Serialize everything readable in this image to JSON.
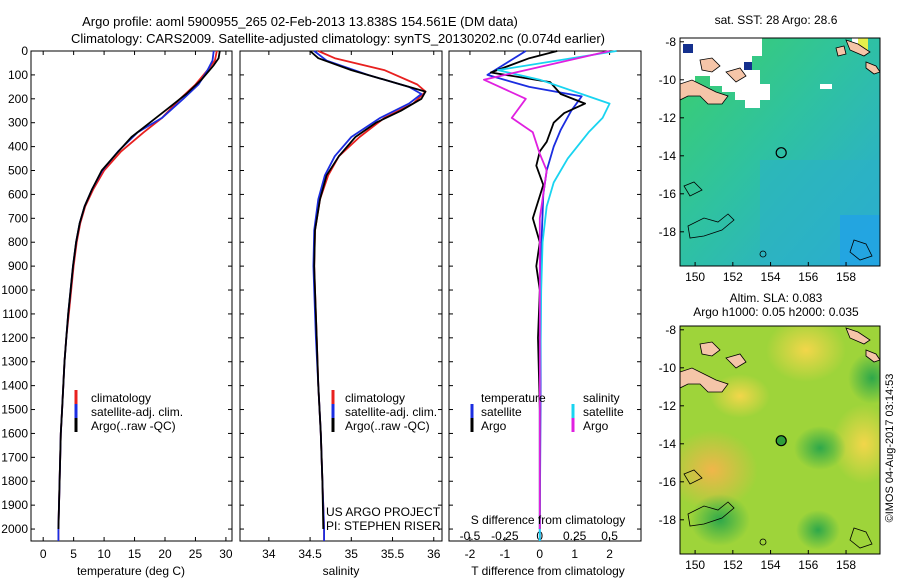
{
  "header": {
    "line1": "Argo profile: aoml 5900955_265 02-Feb-2013 13.838S 154.561E (DM data)",
    "line2": "Climatology: CARS2009. Satellite-adjusted climatology: synTS_20130202.nc (0.074d earlier)"
  },
  "colors": {
    "climatology": "#e8201f",
    "satellite": "#1b2de0",
    "argo": "#000000",
    "salinity_satellite": "#19d4f0",
    "salinity_argo": "#e020e0"
  },
  "side_labels": {
    "project": "US ARGO PROJECT",
    "pi": "PI: STEPHEN RISER",
    "imos": "©IMOS 04-Aug-2017 03:14:53"
  },
  "chart_data": [
    {
      "id": "temperature",
      "type": "line",
      "xlabel": "temperature (deg C)",
      "ylabel": "",
      "xlim": [
        -2,
        31
      ],
      "ylim": [
        2050,
        0
      ],
      "xticks": [
        0,
        5,
        10,
        15,
        20,
        25,
        30
      ],
      "yticks": [
        0,
        100,
        200,
        300,
        400,
        500,
        600,
        700,
        800,
        900,
        1000,
        1100,
        1200,
        1300,
        1400,
        1500,
        1600,
        1700,
        1800,
        1900,
        2000
      ],
      "legend": [
        "climatology",
        "satellite-adj. clim.",
        "Argo(..raw -QC)"
      ],
      "series": [
        {
          "name": "climatology",
          "color": "#e8201f",
          "points": [
            [
              28.5,
              0
            ],
            [
              28.2,
              40
            ],
            [
              27.0,
              80
            ],
            [
              25.0,
              140
            ],
            [
              22.5,
              200
            ],
            [
              19.5,
              280
            ],
            [
              16.5,
              340
            ],
            [
              12.8,
              420
            ],
            [
              10.0,
              500
            ],
            [
              8.2,
              580
            ],
            [
              6.9,
              650
            ],
            [
              6.1,
              720
            ],
            [
              5.5,
              800
            ],
            [
              5.0,
              900
            ],
            [
              4.6,
              1000
            ],
            [
              4.2,
              1100
            ],
            [
              3.8,
              1200
            ],
            [
              3.5,
              1300
            ],
            [
              3.3,
              1400
            ],
            [
              3.1,
              1500
            ],
            [
              2.9,
              1600
            ],
            [
              2.8,
              1700
            ],
            [
              2.7,
              1800
            ],
            [
              2.6,
              1900
            ],
            [
              2.5,
              2000
            ],
            [
              2.5,
              2050
            ]
          ]
        },
        {
          "name": "satellite-adj. clim.",
          "color": "#1b2de0",
          "points": [
            [
              28.0,
              0
            ],
            [
              27.8,
              40
            ],
            [
              27.0,
              80
            ],
            [
              25.5,
              140
            ],
            [
              23.0,
              200
            ],
            [
              19.5,
              280
            ],
            [
              15.5,
              340
            ],
            [
              12.3,
              420
            ],
            [
              9.7,
              500
            ],
            [
              8.0,
              580
            ],
            [
              6.8,
              650
            ],
            [
              6.0,
              720
            ],
            [
              5.4,
              800
            ],
            [
              4.9,
              900
            ],
            [
              4.5,
              1000
            ],
            [
              4.1,
              1100
            ],
            [
              3.8,
              1200
            ],
            [
              3.5,
              1300
            ],
            [
              3.3,
              1400
            ],
            [
              3.1,
              1500
            ],
            [
              2.9,
              1600
            ],
            [
              2.8,
              1700
            ],
            [
              2.7,
              1800
            ],
            [
              2.6,
              1900
            ],
            [
              2.5,
              2000
            ],
            [
              2.5,
              2050
            ]
          ]
        },
        {
          "name": "Argo(..raw -QC)",
          "color": "#000000",
          "points": [
            [
              29.0,
              0
            ],
            [
              28.8,
              30
            ],
            [
              28.0,
              60
            ],
            [
              26.0,
              120
            ],
            [
              23.5,
              180
            ],
            [
              20.5,
              240
            ],
            [
              17.5,
              300
            ],
            [
              14.5,
              360
            ],
            [
              12.0,
              430
            ],
            [
              9.6,
              500
            ],
            [
              8.0,
              580
            ],
            [
              6.8,
              650
            ],
            [
              6.0,
              720
            ],
            [
              5.4,
              800
            ],
            [
              4.9,
              900
            ],
            [
              4.5,
              1000
            ],
            [
              4.1,
              1100
            ],
            [
              3.8,
              1200
            ],
            [
              3.5,
              1300
            ],
            [
              3.3,
              1400
            ],
            [
              3.1,
              1500
            ],
            [
              2.9,
              1600
            ],
            [
              2.8,
              1700
            ],
            [
              2.7,
              1800
            ],
            [
              2.6,
              1900
            ],
            [
              2.5,
              2000
            ]
          ]
        }
      ]
    },
    {
      "id": "salinity",
      "type": "line",
      "xlabel": "salinity",
      "xlim": [
        33.65,
        36.1
      ],
      "ylim": [
        2050,
        0
      ],
      "xticks": [
        34,
        34.5,
        35,
        35.5,
        36
      ],
      "xticklabels": [
        "34",
        "34.5",
        "35",
        "35.5",
        "36"
      ],
      "legend": [
        "climatology",
        "satellite-adj. clim.",
        "Argo(..raw -QC)"
      ],
      "series": [
        {
          "name": "climatology",
          "color": "#e8201f",
          "points": [
            [
              34.6,
              0
            ],
            [
              34.8,
              30
            ],
            [
              35.4,
              80
            ],
            [
              35.8,
              140
            ],
            [
              35.9,
              170
            ],
            [
              35.75,
              220
            ],
            [
              35.4,
              280
            ],
            [
              35.1,
              360
            ],
            [
              34.85,
              440
            ],
            [
              34.72,
              520
            ],
            [
              34.62,
              620
            ],
            [
              34.56,
              750
            ],
            [
              34.55,
              900
            ],
            [
              34.56,
              1000
            ],
            [
              34.58,
              1200
            ],
            [
              34.6,
              1400
            ],
            [
              34.63,
              1600
            ],
            [
              34.65,
              1800
            ],
            [
              34.67,
              2000
            ],
            [
              34.67,
              2050
            ]
          ]
        },
        {
          "name": "satellite-adj. clim.",
          "color": "#1b2de0",
          "points": [
            [
              34.55,
              0
            ],
            [
              34.7,
              40
            ],
            [
              35.2,
              100
            ],
            [
              35.7,
              150
            ],
            [
              35.85,
              180
            ],
            [
              35.7,
              220
            ],
            [
              35.35,
              280
            ],
            [
              35.0,
              360
            ],
            [
              34.8,
              440
            ],
            [
              34.68,
              520
            ],
            [
              34.6,
              620
            ],
            [
              34.55,
              750
            ],
            [
              34.54,
              900
            ],
            [
              34.55,
              1000
            ],
            [
              34.57,
              1200
            ],
            [
              34.6,
              1400
            ],
            [
              34.63,
              1600
            ],
            [
              34.65,
              1800
            ],
            [
              34.67,
              2000
            ],
            [
              34.67,
              2050
            ]
          ]
        },
        {
          "name": "Argo(..raw -QC)",
          "color": "#000000",
          "points": [
            [
              34.5,
              0
            ],
            [
              34.6,
              30
            ],
            [
              35.0,
              80
            ],
            [
              35.6,
              140
            ],
            [
              35.9,
              170
            ],
            [
              35.85,
              200
            ],
            [
              35.6,
              250
            ],
            [
              35.3,
              300
            ],
            [
              35.05,
              360
            ],
            [
              34.85,
              440
            ],
            [
              34.7,
              520
            ],
            [
              34.62,
              620
            ],
            [
              34.56,
              750
            ],
            [
              34.55,
              900
            ],
            [
              34.56,
              1000
            ],
            [
              34.58,
              1200
            ],
            [
              34.6,
              1400
            ],
            [
              34.63,
              1600
            ],
            [
              34.65,
              1800
            ],
            [
              34.66,
              2000
            ]
          ]
        }
      ]
    },
    {
      "id": "difference",
      "type": "line",
      "xlabel": "T difference from climatology",
      "xlabel_top": "S difference from climatology",
      "xlim": [
        -2.6,
        2.9
      ],
      "ylim": [
        2050,
        0
      ],
      "xticks": [
        -2,
        -1,
        0,
        1,
        2
      ],
      "xticks_S": [
        -0.5,
        -0.25,
        0,
        0.25,
        0.5
      ],
      "xticklabels_S": [
        "-0.5",
        "-0.25",
        "0",
        "0.25",
        "0.5"
      ],
      "legend_titles": [
        "temperature",
        "salinity"
      ],
      "legend": [
        "satellite",
        "Argo",
        "satellite",
        "Argo"
      ],
      "series": [
        {
          "name": "T satellite",
          "color": "#1b2de0",
          "points": [
            [
              -0.4,
              0
            ],
            [
              -1.5,
              100
            ],
            [
              -0.3,
              150
            ],
            [
              1.2,
              190
            ],
            [
              0.9,
              250
            ],
            [
              0.6,
              330
            ],
            [
              0.4,
              400
            ],
            [
              0.2,
              500
            ],
            [
              0.1,
              600
            ],
            [
              0.05,
              800
            ],
            [
              0.03,
              1000
            ],
            [
              0.02,
              1500
            ],
            [
              0.0,
              2000
            ],
            [
              0.0,
              2050
            ]
          ]
        },
        {
          "name": "T Argo",
          "color": "#000000",
          "points": [
            [
              0.5,
              0
            ],
            [
              -0.3,
              30
            ],
            [
              -1.4,
              90
            ],
            [
              0.3,
              130
            ],
            [
              0.6,
              180
            ],
            [
              1.3,
              220
            ],
            [
              0.7,
              260
            ],
            [
              0.4,
              300
            ],
            [
              0.2,
              380
            ],
            [
              0.0,
              420
            ],
            [
              -0.1,
              480
            ],
            [
              0.1,
              560
            ],
            [
              -0.2,
              700
            ],
            [
              0.0,
              800
            ],
            [
              -0.1,
              900
            ],
            [
              0.0,
              1000
            ],
            [
              -0.05,
              1200
            ],
            [
              0.0,
              1500
            ],
            [
              0.0,
              2000
            ]
          ]
        },
        {
          "name": "S satellite",
          "color": "#19d4f0",
          "points": [
            [
              0.55,
              0
            ],
            [
              -0.3,
              80
            ],
            [
              0.0,
              120
            ],
            [
              0.25,
              170
            ],
            [
              0.5,
              220
            ],
            [
              0.45,
              280
            ],
            [
              0.35,
              340
            ],
            [
              0.2,
              450
            ],
            [
              0.1,
              550
            ],
            [
              0.05,
              650
            ],
            [
              0.02,
              800
            ],
            [
              0.01,
              1000
            ],
            [
              0.0,
              1500
            ],
            [
              0.0,
              2000
            ],
            [
              0.0,
              2050
            ]
          ]
        },
        {
          "name": "S Argo",
          "color": "#e020e0",
          "points": [
            [
              0.5,
              0
            ],
            [
              -0.1,
              80
            ],
            [
              -0.4,
              120
            ],
            [
              -0.1,
              200
            ],
            [
              -0.2,
              280
            ],
            [
              -0.05,
              340
            ],
            [
              0.0,
              430
            ],
            [
              0.05,
              500
            ],
            [
              0.0,
              700
            ],
            [
              0.0,
              1000
            ],
            [
              0.0,
              2000
            ]
          ]
        }
      ]
    },
    {
      "id": "sst-map",
      "type": "heatmap",
      "title": "sat. SST: 28 Argo: 28.6",
      "xticks": [
        150,
        152,
        154,
        156,
        158
      ],
      "yticks": [
        -8,
        -10,
        -12,
        -14,
        -16,
        -18
      ],
      "xlim": [
        149.2,
        159.8
      ],
      "ylim": [
        -19.8,
        -7.8
      ],
      "float_position": [
        154.561,
        -13.838
      ]
    },
    {
      "id": "sla-map",
      "type": "heatmap",
      "title_line1": "Altim. SLA: 0.083",
      "title_line2": "Argo h1000: 0.05 h2000: 0.035",
      "xticks": [
        150,
        152,
        154,
        156,
        158
      ],
      "yticks": [
        -8,
        -10,
        -12,
        -14,
        -16,
        -18
      ],
      "xlim": [
        149.2,
        159.8
      ],
      "ylim": [
        -19.8,
        -7.8
      ],
      "float_position": [
        154.561,
        -13.838
      ]
    }
  ]
}
